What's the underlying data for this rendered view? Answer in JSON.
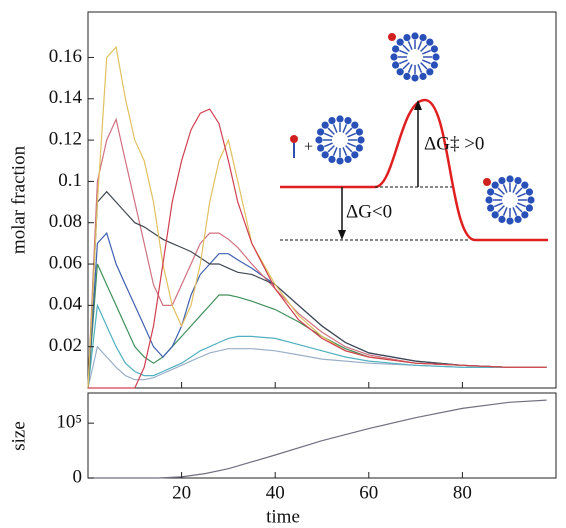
{
  "chart_data": [
    {
      "type": "line",
      "y_label": "molar fraction",
      "x": [
        0,
        2,
        4,
        6,
        8,
        10,
        12,
        14,
        16,
        18,
        20,
        22,
        24,
        26,
        28,
        30,
        32,
        35,
        40,
        45,
        50,
        55,
        60,
        70,
        80,
        90,
        98
      ],
      "xlim": [
        0,
        100
      ],
      "ylim": [
        0,
        0.182
      ],
      "yticks": [
        0.02,
        0.04,
        0.06,
        0.08,
        0.1,
        0.12,
        0.14,
        0.16
      ],
      "series": [
        {
          "color": "#9ab0c8",
          "values": [
            0,
            0.02,
            0.015,
            0.01,
            0.006,
            0.004,
            0.004,
            0.005,
            0.007,
            0.009,
            0.011,
            0.013,
            0.015,
            0.017,
            0.018,
            0.019,
            0.019,
            0.019,
            0.018,
            0.016,
            0.014,
            0.013,
            0.012,
            0.011,
            0.01,
            0.01,
            0.01
          ]
        },
        {
          "color": "#50b0c0",
          "values": [
            0,
            0.04,
            0.03,
            0.02,
            0.012,
            0.008,
            0.006,
            0.006,
            0.008,
            0.01,
            0.012,
            0.015,
            0.018,
            0.02,
            0.022,
            0.024,
            0.025,
            0.025,
            0.024,
            0.021,
            0.018,
            0.015,
            0.013,
            0.011,
            0.01,
            0.01,
            0.01
          ]
        },
        {
          "color": "#40905a",
          "values": [
            0,
            0.06,
            0.05,
            0.04,
            0.03,
            0.02,
            0.015,
            0.012,
            0.015,
            0.02,
            0.025,
            0.03,
            0.035,
            0.04,
            0.045,
            0.045,
            0.044,
            0.042,
            0.038,
            0.032,
            0.025,
            0.019,
            0.015,
            0.012,
            0.011,
            0.01,
            0.01
          ]
        },
        {
          "color": "#4060b0",
          "values": [
            0,
            0.07,
            0.075,
            0.06,
            0.05,
            0.04,
            0.03,
            0.02,
            0.015,
            0.02,
            0.03,
            0.045,
            0.055,
            0.06,
            0.065,
            0.065,
            0.062,
            0.058,
            0.05,
            0.04,
            0.03,
            0.022,
            0.017,
            0.013,
            0.011,
            0.01,
            0.01
          ]
        },
        {
          "color": "#d07080",
          "values": [
            0,
            0.1,
            0.12,
            0.13,
            0.11,
            0.09,
            0.07,
            0.05,
            0.04,
            0.04,
            0.05,
            0.06,
            0.07,
            0.075,
            0.075,
            0.072,
            0.068,
            0.06,
            0.048,
            0.036,
            0.027,
            0.02,
            0.016,
            0.012,
            0.011,
            0.01,
            0.01
          ]
        },
        {
          "color": "#404850",
          "values": [
            0,
            0.09,
            0.095,
            0.09,
            0.085,
            0.08,
            0.078,
            0.075,
            0.072,
            0.07,
            0.068,
            0.066,
            0.063,
            0.06,
            0.06,
            0.058,
            0.056,
            0.055,
            0.05,
            0.04,
            0.03,
            0.022,
            0.017,
            0.013,
            0.011,
            0.01,
            0.01
          ]
        },
        {
          "color": "#e0c060",
          "values": [
            0,
            0.09,
            0.16,
            0.165,
            0.14,
            0.12,
            0.11,
            0.09,
            0.06,
            0.04,
            0.03,
            0.04,
            0.06,
            0.09,
            0.11,
            0.12,
            0.1,
            0.07,
            0.05,
            0.035,
            0.025,
            0.018,
            0.015,
            0.012,
            0.011,
            0.01,
            0.01
          ]
        },
        {
          "color": "#d04050",
          "values": [
            0,
            0,
            0,
            0,
            0,
            0,
            0.01,
            0.03,
            0.06,
            0.09,
            0.11,
            0.125,
            0.133,
            0.135,
            0.128,
            0.11,
            0.09,
            0.07,
            0.048,
            0.033,
            0.024,
            0.018,
            0.015,
            0.012,
            0.011,
            0.01,
            0.01
          ]
        }
      ],
      "annotations": [
        "+",
        "ΔG‡ >0",
        "ΔG<0"
      ]
    },
    {
      "type": "line",
      "y_label": "size",
      "x_label": "time",
      "x": [
        0,
        10,
        15,
        20,
        25,
        30,
        40,
        50,
        60,
        70,
        80,
        90,
        98
      ],
      "xlim": [
        0,
        100
      ],
      "ylim": [
        0,
        155000
      ],
      "xticks": [
        20,
        40,
        60,
        80
      ],
      "yticks": [
        0,
        {
          "value": 100000,
          "label": "10⁵"
        }
      ],
      "series": [
        {
          "color": "#707080",
          "values": [
            0,
            0,
            0,
            2000,
            8000,
            17000,
            42000,
            68000,
            90000,
            110000,
            127000,
            138000,
            142000
          ]
        }
      ]
    }
  ]
}
